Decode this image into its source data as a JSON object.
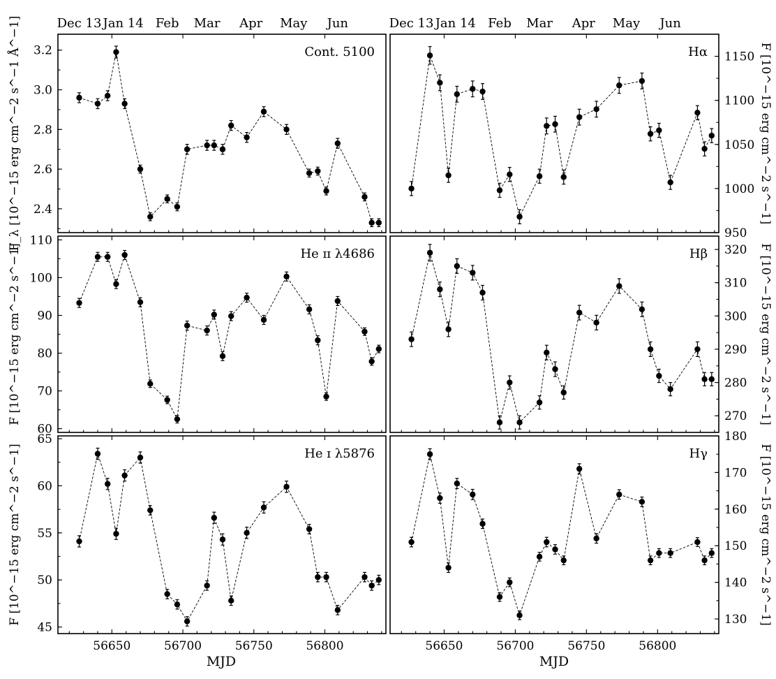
{
  "figure": {
    "x_axis_label": "MJD",
    "top_axis_month_labels": [
      "Dec 13",
      "Jan 14",
      "Feb",
      "Mar",
      "Apr",
      "May",
      "Jun"
    ]
  },
  "chart_data": [
    {
      "type": "line",
      "panel_label": "Cont. 5100",
      "ylabel": "F_λ [10^−15 erg cm^−2 s^−1 Å^−1]",
      "xlabel": "",
      "xlim": [
        56612,
        56843
      ],
      "ylim": [
        2.28,
        3.28
      ],
      "x_ticks": [
        56650,
        56700,
        56750,
        56800
      ],
      "y_ticks": [
        2.4,
        2.6,
        2.8,
        3.0,
        3.2
      ],
      "y_tick_labels": [
        "2.4",
        "2.6",
        "2.8",
        "3.0",
        "3.2"
      ],
      "x": [
        56627,
        56640,
        56647,
        56653,
        56659,
        56670,
        56677,
        56689,
        56696,
        56703,
        56717,
        56722,
        56728,
        56734,
        56745,
        56757,
        56773,
        56789,
        56795,
        56801,
        56809,
        56828,
        56833,
        56838
      ],
      "y": [
        2.96,
        2.93,
        2.97,
        3.19,
        2.93,
        2.6,
        2.36,
        2.45,
        2.41,
        2.7,
        2.72,
        2.72,
        2.7,
        2.82,
        2.76,
        2.89,
        2.8,
        2.58,
        2.59,
        2.49,
        2.73,
        2.46,
        2.33,
        2.33
      ],
      "err": [
        0.025,
        0.025,
        0.025,
        0.03,
        0.025,
        0.02,
        0.02,
        0.02,
        0.02,
        0.025,
        0.025,
        0.025,
        0.025,
        0.025,
        0.025,
        0.025,
        0.025,
        0.02,
        0.02,
        0.02,
        0.025,
        0.02,
        0.02,
        0.02
      ]
    },
    {
      "type": "line",
      "panel_label": "Hα",
      "ylabel": "F [10^−15 erg cm^−2 s^−1]",
      "xlabel": "",
      "xlim": [
        56612,
        56843
      ],
      "ylim": [
        950,
        1175
      ],
      "x_ticks": [
        56650,
        56700,
        56750,
        56800
      ],
      "y_ticks": [
        950,
        1000,
        1050,
        1100,
        1150
      ],
      "y_tick_labels": [
        "950",
        "1000",
        "1050",
        "1100",
        "1150"
      ],
      "x": [
        56627,
        56640,
        56647,
        56653,
        56659,
        56670,
        56677,
        56689,
        56696,
        56703,
        56717,
        56722,
        56728,
        56734,
        56745,
        56757,
        56773,
        56789,
        56795,
        56801,
        56809,
        56828,
        56833,
        56838
      ],
      "y": [
        1000,
        1151,
        1120,
        1015,
        1107,
        1113,
        1110,
        998,
        1016,
        968,
        1014,
        1071,
        1073,
        1013,
        1081,
        1090,
        1117,
        1122,
        1062,
        1066,
        1007,
        1086,
        1045,
        1060
      ],
      "err": [
        8,
        10,
        9,
        8,
        9,
        9,
        9,
        8,
        8,
        8,
        8,
        9,
        9,
        8,
        9,
        9,
        9,
        9,
        8,
        8,
        8,
        8,
        8,
        8
      ]
    },
    {
      "type": "line",
      "panel_label": "He ɪɪ λ4686",
      "ylabel": "F [10^−15 erg cm^−2 s^−1]",
      "xlabel": "",
      "xlim": [
        56612,
        56843
      ],
      "ylim": [
        59,
        111
      ],
      "x_ticks": [
        56650,
        56700,
        56750,
        56800
      ],
      "y_ticks": [
        60,
        70,
        80,
        90,
        100,
        110
      ],
      "y_tick_labels": [
        "60",
        "70",
        "80",
        "90",
        "100",
        "110"
      ],
      "x": [
        56627,
        56640,
        56647,
        56653,
        56659,
        56670,
        56677,
        56689,
        56696,
        56703,
        56717,
        56722,
        56728,
        56734,
        56745,
        56757,
        56773,
        56789,
        56795,
        56801,
        56809,
        56828,
        56833,
        56838
      ],
      "y": [
        93.3,
        105.5,
        105.5,
        98.3,
        106.0,
        93.5,
        71.9,
        67.6,
        62.5,
        87.3,
        86.0,
        90.2,
        79.2,
        89.8,
        94.7,
        88.8,
        100.3,
        91.6,
        83.4,
        68.5,
        93.8,
        85.7,
        77.8,
        81.1
      ],
      "err": [
        1.2,
        1.2,
        1.2,
        1.2,
        1.2,
        1.2,
        1.0,
        1.0,
        1.0,
        1.2,
        1.2,
        1.2,
        1.2,
        1.2,
        1.2,
        1.2,
        1.2,
        1.2,
        1.2,
        1.0,
        1.2,
        1.0,
        1.0,
        1.0
      ]
    },
    {
      "type": "line",
      "panel_label": "Hβ",
      "ylabel": "F [10^−15 erg cm^−2 s^−1]",
      "xlabel": "",
      "xlim": [
        56612,
        56843
      ],
      "ylim": [
        265,
        324
      ],
      "x_ticks": [
        56650,
        56700,
        56750,
        56800
      ],
      "y_ticks": [
        270,
        280,
        290,
        300,
        310,
        320
      ],
      "y_tick_labels": [
        "270",
        "280",
        "290",
        "300",
        "310",
        "320"
      ],
      "x": [
        56627,
        56640,
        56647,
        56653,
        56659,
        56670,
        56677,
        56689,
        56696,
        56703,
        56717,
        56722,
        56728,
        56734,
        56745,
        56757,
        56773,
        56789,
        56795,
        56801,
        56809,
        56828,
        56833,
        56838
      ],
      "y": [
        293,
        319,
        308,
        296,
        315,
        313,
        307,
        268,
        280,
        268,
        274,
        289,
        284,
        277,
        301,
        298,
        309,
        302,
        290,
        282,
        278,
        290,
        281,
        281
      ],
      "err": [
        2.2,
        2.5,
        2.2,
        2.2,
        2.2,
        2.2,
        2.2,
        2.0,
        2.0,
        2.0,
        2.0,
        2.2,
        2.2,
        2.0,
        2.2,
        2.2,
        2.2,
        2.2,
        2.2,
        2.0,
        2.0,
        2.2,
        2.0,
        2.0
      ]
    },
    {
      "type": "line",
      "panel_label": "He ɪ λ5876",
      "ylabel": "F [10^−15 erg cm^−2 s^−1]",
      "xlabel": "MJD",
      "xlim": [
        56612,
        56843
      ],
      "ylim": [
        44.3,
        65.3
      ],
      "x_ticks": [
        56650,
        56700,
        56750,
        56800
      ],
      "x_tick_labels": [
        "56650",
        "56700",
        "56750",
        "56800"
      ],
      "y_ticks": [
        45,
        50,
        55,
        60,
        65
      ],
      "y_tick_labels": [
        "45",
        "50",
        "55",
        "60",
        "65"
      ],
      "x": [
        56627,
        56640,
        56647,
        56653,
        56659,
        56670,
        56677,
        56689,
        56696,
        56703,
        56717,
        56722,
        56728,
        56734,
        56745,
        56757,
        56773,
        56789,
        56795,
        56801,
        56809,
        56828,
        56833,
        56838
      ],
      "y": [
        54.1,
        63.4,
        60.2,
        54.9,
        61.1,
        63.0,
        57.4,
        48.5,
        47.4,
        45.6,
        49.4,
        56.6,
        54.3,
        47.8,
        55.0,
        57.7,
        59.9,
        55.4,
        50.3,
        50.3,
        46.8,
        50.3,
        49.4,
        50.0
      ],
      "err": [
        0.6,
        0.6,
        0.6,
        0.6,
        0.6,
        0.6,
        0.5,
        0.5,
        0.5,
        0.5,
        0.5,
        0.6,
        0.6,
        0.5,
        0.6,
        0.6,
        0.6,
        0.5,
        0.5,
        0.5,
        0.5,
        0.5,
        0.5,
        0.5
      ]
    },
    {
      "type": "line",
      "panel_label": "Hγ",
      "ylabel": "F [10^−15 erg cm^−2 s^−1]",
      "xlabel": "MJD",
      "xlim": [
        56612,
        56843
      ],
      "ylim": [
        126,
        180
      ],
      "x_ticks": [
        56650,
        56700,
        56750,
        56800
      ],
      "x_tick_labels": [
        "56650",
        "56700",
        "56750",
        "56800"
      ],
      "y_ticks": [
        130,
        140,
        150,
        160,
        170,
        180
      ],
      "y_tick_labels": [
        "130",
        "140",
        "150",
        "160",
        "170",
        "180"
      ],
      "x": [
        56627,
        56640,
        56647,
        56653,
        56659,
        56670,
        56677,
        56689,
        56696,
        56703,
        56717,
        56722,
        56728,
        56734,
        56745,
        56757,
        56773,
        56789,
        56795,
        56801,
        56809,
        56828,
        56833,
        56838
      ],
      "y": [
        151,
        175,
        163,
        144,
        167,
        164,
        156,
        136,
        140,
        131,
        147,
        151,
        149,
        146,
        171,
        152,
        164,
        162,
        146,
        148,
        148,
        151,
        146,
        148
      ],
      "err": [
        1.3,
        1.5,
        1.4,
        1.3,
        1.4,
        1.4,
        1.3,
        1.2,
        1.2,
        1.2,
        1.2,
        1.3,
        1.3,
        1.2,
        1.4,
        1.3,
        1.3,
        1.3,
        1.2,
        1.2,
        1.2,
        1.2,
        1.2,
        1.2
      ]
    }
  ]
}
